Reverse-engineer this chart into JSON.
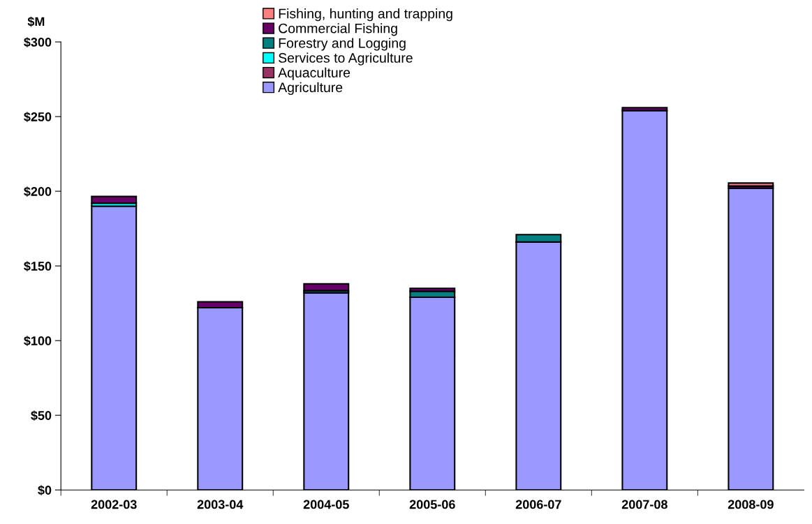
{
  "chart_data": {
    "type": "bar",
    "stacked": true,
    "ylabel": "$M",
    "categories": [
      "2002-03",
      "2003-04",
      "2004-05",
      "2005-06",
      "2006-07",
      "2007-08",
      "2008-09"
    ],
    "series": [
      {
        "name": "Agriculture",
        "color": "#9999ff",
        "values": [
          190,
          122,
          132,
          129,
          166,
          254,
          202
        ]
      },
      {
        "name": "Aquaculture",
        "color": "#993366",
        "values": [
          null,
          null,
          null,
          null,
          null,
          null,
          null
        ]
      },
      {
        "name": "Services to Agriculture",
        "color": "#00ffff",
        "values": [
          2,
          null,
          null,
          null,
          null,
          null,
          null
        ]
      },
      {
        "name": "Forestry and Logging",
        "color": "#008080",
        "values": [
          null,
          null,
          1.5,
          4,
          5,
          null,
          null
        ]
      },
      {
        "name": "Commercial Fishing",
        "color": "#660066",
        "values": [
          4.5,
          4,
          4.5,
          2,
          null,
          2,
          1.5
        ]
      },
      {
        "name": "Fishing, hunting and trapping",
        "color": "#ff8080",
        "values": [
          null,
          null,
          null,
          null,
          null,
          null,
          2
        ]
      }
    ],
    "ylim": [
      0,
      300
    ],
    "yticks": [
      {
        "value": 0,
        "label": "$0"
      },
      {
        "value": 50,
        "label": "$50"
      },
      {
        "value": 100,
        "label": "$100"
      },
      {
        "value": 150,
        "label": "$150"
      },
      {
        "value": 200,
        "label": "$200"
      },
      {
        "value": 250,
        "label": "$250"
      },
      {
        "value": 300,
        "label": "$300"
      }
    ],
    "grid": false,
    "legend": "top"
  }
}
